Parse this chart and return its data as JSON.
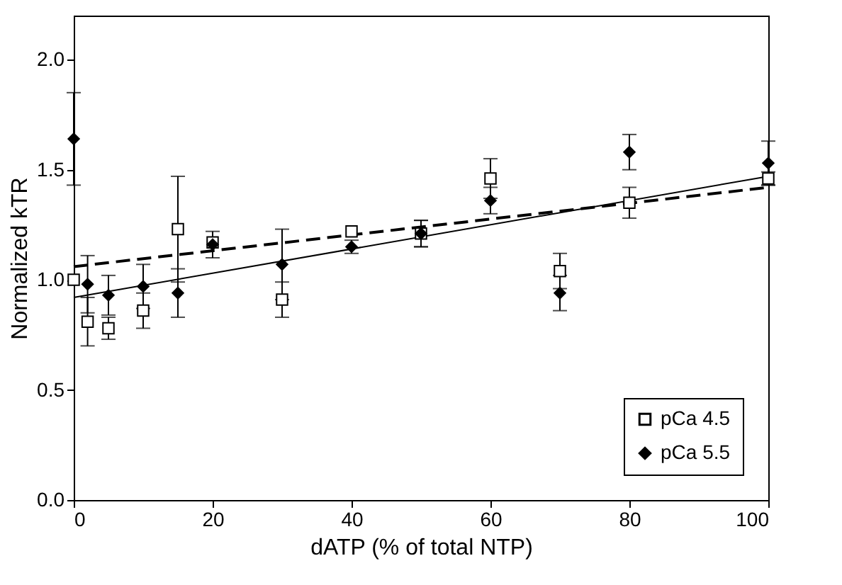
{
  "chart_data": {
    "type": "scatter",
    "xlabel": "dATP (% of total NTP)",
    "ylabel": "Normalized kTR",
    "xlim": [
      0,
      100
    ],
    "ylim": [
      0,
      2.2
    ],
    "xticks": [
      0,
      20,
      40,
      60,
      80,
      100
    ],
    "yticks": [
      {
        "value": 0,
        "label": "0.0"
      },
      {
        "value": 0.5,
        "label": "0.5"
      },
      {
        "value": 1,
        "label": "1.0"
      },
      {
        "value": 1.5,
        "label": "1.5"
      },
      {
        "value": 2,
        "label": "2.0"
      }
    ],
    "legend": "bottom right",
    "grid": false,
    "series": [
      {
        "name": "pCa 4.5",
        "color": "#000000",
        "marker": "square",
        "x": [
          0,
          2,
          5,
          10,
          15,
          20,
          30,
          40,
          50,
          60,
          70,
          80,
          100
        ],
        "values": [
          1.0,
          0.81,
          0.78,
          0.86,
          1.23,
          1.17,
          0.91,
          1.22,
          1.21,
          1.46,
          1.04,
          1.35,
          1.46
        ],
        "errors": [
          null,
          0.11,
          0.05,
          0.08,
          0.24,
          null,
          0.08,
          null,
          0.06,
          0.09,
          0.08,
          0.07,
          0.03
        ]
      },
      {
        "name": "pCa 5.5",
        "color": "#000000",
        "marker": "diamond",
        "x": [
          0,
          2,
          5,
          10,
          15,
          20,
          30,
          40,
          50,
          60,
          70,
          80,
          100
        ],
        "values": [
          1.64,
          0.98,
          0.93,
          0.97,
          0.94,
          1.16,
          1.07,
          1.15,
          1.21,
          1.36,
          0.94,
          1.58,
          1.53
        ],
        "errors": [
          0.21,
          0.13,
          0.09,
          0.1,
          0.11,
          0.06,
          0.16,
          0.03,
          0.06,
          0.06,
          0.08,
          0.08,
          0.1
        ]
      },
      {
        "type": "line",
        "line_style": "solid",
        "color": "#000000",
        "x": [
          0,
          100
        ],
        "values": [
          0.92,
          1.47
        ]
      },
      {
        "type": "line",
        "line_style": "dashed",
        "color": "#000000",
        "x": [
          0,
          100
        ],
        "values": [
          1.06,
          1.42
        ]
      }
    ]
  }
}
